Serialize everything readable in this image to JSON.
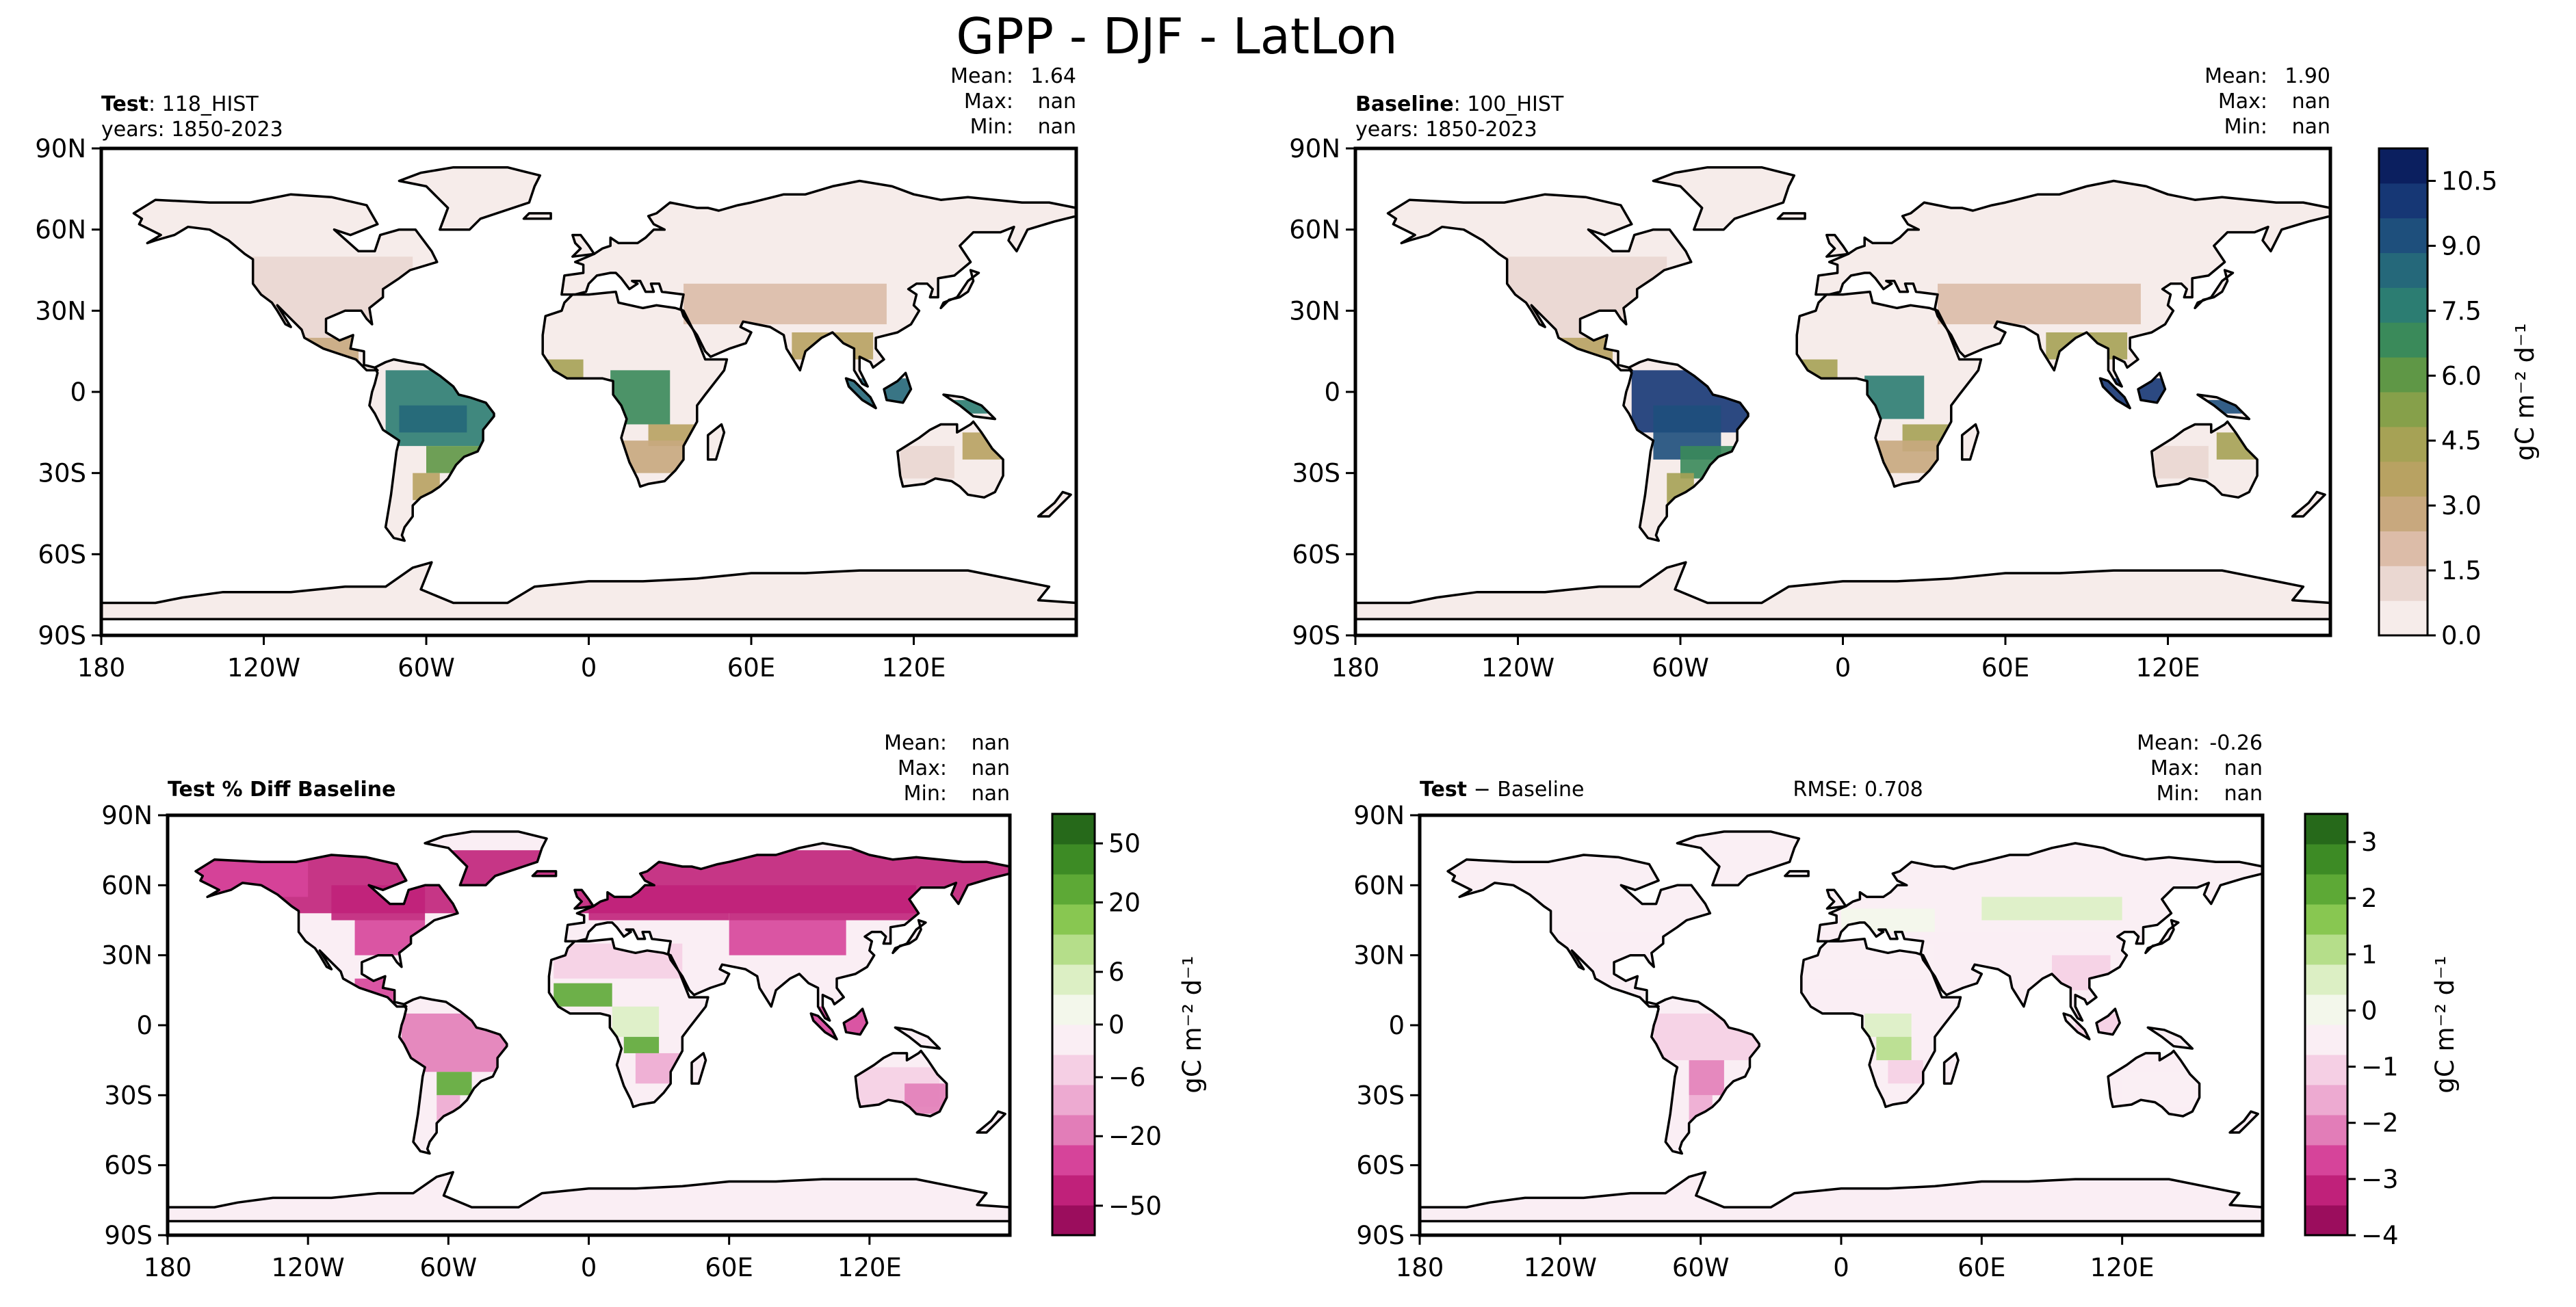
{
  "figure_title": "GPP - DJF - LatLon",
  "colors": {
    "land_outline": "#000000",
    "ocean": "#ffffff",
    "gpp_scale": [
      "#f6ecea",
      "#ead7d1",
      "#dcbca8",
      "#c8a87e",
      "#b8a262",
      "#a6a255",
      "#86a04a",
      "#5f9746",
      "#3a8a5a",
      "#2c7d72",
      "#25687a",
      "#1e4f7c",
      "#163775",
      "#0b1f5f"
    ],
    "diff_scale": [
      "#9b0d5d",
      "#c0217a",
      "#d6449a",
      "#e27db8",
      "#edaad1",
      "#f5cfe4",
      "#faeef4",
      "#f3f7eb",
      "#dcefc4",
      "#b5de8a",
      "#88c751",
      "#5da936",
      "#3d8b25",
      "#26691a"
    ]
  },
  "chart_data": [
    {
      "type": "heatmap",
      "panel": "test",
      "title_bold": "Test",
      "title_rest": ": 118_HIST",
      "years": "years: 1850-2023",
      "stats": [
        {
          "label": "Mean:",
          "value": "1.64"
        },
        {
          "label": "Max:",
          "value": "nan"
        },
        {
          "label": "Min:",
          "value": "nan"
        }
      ],
      "x_ticks": [
        "180",
        "120W",
        "60W",
        "0",
        "60E",
        "120E"
      ],
      "y_ticks": [
        "90N",
        "60N",
        "30N",
        "0",
        "30S",
        "60S",
        "90S"
      ],
      "xlim": [
        -180,
        180
      ],
      "ylim": [
        -90,
        90
      ]
    },
    {
      "type": "heatmap",
      "panel": "baseline",
      "title_bold": "Baseline",
      "title_rest": ": 100_HIST",
      "years": "years: 1850-2023",
      "stats": [
        {
          "label": "Mean:",
          "value": "1.90"
        },
        {
          "label": "Max:",
          "value": "nan"
        },
        {
          "label": "Min:",
          "value": "nan"
        }
      ],
      "x_ticks": [
        "180",
        "120W",
        "60W",
        "0",
        "60E",
        "120E"
      ],
      "y_ticks": [
        "90N",
        "60N",
        "30N",
        "0",
        "30S",
        "60S",
        "90S"
      ],
      "xlim": [
        -180,
        180
      ],
      "ylim": [
        -90,
        90
      ],
      "colorbar": {
        "label": "gC m⁻² d⁻¹",
        "levels": [
          0,
          0.75,
          1.5,
          2.25,
          3,
          3.75,
          4.5,
          5.25,
          6,
          6.75,
          7.5,
          8.25,
          9,
          9.75,
          10.5,
          11.25
        ],
        "tick_values": [
          0,
          1.5,
          3,
          4.5,
          6,
          7.5,
          9,
          10.5
        ],
        "tick_labels": [
          "0.0",
          "1.5",
          "3.0",
          "4.5",
          "6.0",
          "7.5",
          "9.0",
          "10.5"
        ]
      }
    },
    {
      "type": "heatmap",
      "panel": "pct_diff",
      "title_bold": "Test % Diff Baseline",
      "title_rest": "",
      "years": "",
      "stats": [
        {
          "label": "Mean:",
          "value": "nan"
        },
        {
          "label": "Max:",
          "value": "nan"
        },
        {
          "label": "Min:",
          "value": "nan"
        }
      ],
      "x_ticks": [
        "180",
        "120W",
        "60W",
        "0",
        "60E",
        "120E"
      ],
      "y_ticks": [
        "90N",
        "60N",
        "30N",
        "0",
        "30S",
        "60S",
        "90S"
      ],
      "xlim": [
        -180,
        180
      ],
      "ylim": [
        -90,
        90
      ],
      "colorbar": {
        "label": "gC m⁻² d⁻¹",
        "tick_labels": [
          "50",
          "20",
          "6",
          "0",
          "−6",
          "−20",
          "−50"
        ],
        "tick_fractions": [
          0.07,
          0.21,
          0.375,
          0.5,
          0.625,
          0.765,
          0.93
        ]
      }
    },
    {
      "type": "heatmap",
      "panel": "diff",
      "title_bold": "Test",
      "title_rest": " − Baseline",
      "rmse": "RMSE: 0.708",
      "years": "",
      "stats": [
        {
          "label": "Mean:",
          "value": "-0.26"
        },
        {
          "label": "Max:",
          "value": "nan"
        },
        {
          "label": "Min:",
          "value": "nan"
        }
      ],
      "x_ticks": [
        "180",
        "120W",
        "60W",
        "0",
        "60E",
        "120E"
      ],
      "y_ticks": [
        "90N",
        "60N",
        "30N",
        "0",
        "30S",
        "60S",
        "90S"
      ],
      "xlim": [
        -180,
        180
      ],
      "ylim": [
        -90,
        90
      ],
      "colorbar": {
        "label": "gC m⁻² d⁻¹",
        "tick_labels": [
          "3",
          "2",
          "1",
          "0",
          "−1",
          "−2",
          "−3",
          "−4"
        ],
        "tick_values": [
          3,
          2,
          1,
          0,
          -1,
          -2,
          -3,
          -4
        ]
      }
    }
  ]
}
